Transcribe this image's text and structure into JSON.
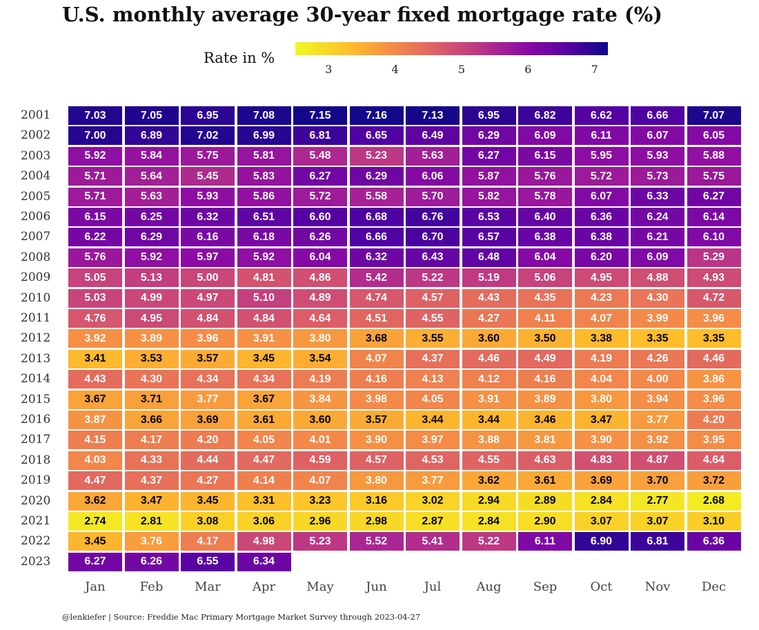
{
  "title": "U.S. monthly average 30-year fixed mortgage rate (%)",
  "legend": {
    "label": "Rate in %",
    "ticks": [
      "3",
      "4",
      "5",
      "6",
      "7"
    ],
    "min": 2.5,
    "max": 7.2
  },
  "footer": "@lenkiefer | Source: Freddie Mac Primary Mortgage Market Survey through 2023-04-27",
  "chart_data": {
    "type": "heatmap",
    "title": "U.S. monthly average 30-year fixed mortgage rate (%)",
    "x": [
      "Jan",
      "Feb",
      "Mar",
      "Apr",
      "May",
      "Jun",
      "Jul",
      "Aug",
      "Sep",
      "Oct",
      "Nov",
      "Dec"
    ],
    "y": [
      "2001",
      "2002",
      "2003",
      "2004",
      "2005",
      "2006",
      "2007",
      "2008",
      "2009",
      "2010",
      "2011",
      "2012",
      "2013",
      "2014",
      "2015",
      "2016",
      "2017",
      "2018",
      "2019",
      "2020",
      "2021",
      "2022",
      "2023"
    ],
    "values": [
      [
        "7.03",
        "7.05",
        "6.95",
        "7.08",
        "7.15",
        "7.16",
        "7.13",
        "6.95",
        "6.82",
        "6.62",
        "6.66",
        "7.07"
      ],
      [
        "7.00",
        "6.89",
        "7.02",
        "6.99",
        "6.81",
        "6.65",
        "6.49",
        "6.29",
        "6.09",
        "6.11",
        "6.07",
        "6.05"
      ],
      [
        "5.92",
        "5.84",
        "5.75",
        "5.81",
        "5.48",
        "5.23",
        "5.63",
        "6.27",
        "6.15",
        "5.95",
        "5.93",
        "5.88"
      ],
      [
        "5.71",
        "5.64",
        "5.45",
        "5.83",
        "6.27",
        "6.29",
        "6.06",
        "5.87",
        "5.76",
        "5.72",
        "5.73",
        "5.75"
      ],
      [
        "5.71",
        "5.63",
        "5.93",
        "5.86",
        "5.72",
        "5.58",
        "5.70",
        "5.82",
        "5.78",
        "6.07",
        "6.33",
        "6.27"
      ],
      [
        "6.15",
        "6.25",
        "6.32",
        "6.51",
        "6.60",
        "6.68",
        "6.76",
        "6.53",
        "6.40",
        "6.36",
        "6.24",
        "6.14"
      ],
      [
        "6.22",
        "6.29",
        "6.16",
        "6.18",
        "6.26",
        "6.66",
        "6.70",
        "6.57",
        "6.38",
        "6.38",
        "6.21",
        "6.10"
      ],
      [
        "5.76",
        "5.92",
        "5.97",
        "5.92",
        "6.04",
        "6.32",
        "6.43",
        "6.48",
        "6.04",
        "6.20",
        "6.09",
        "5.29"
      ],
      [
        "5.05",
        "5.13",
        "5.00",
        "4.81",
        "4.86",
        "5.42",
        "5.22",
        "5.19",
        "5.06",
        "4.95",
        "4.88",
        "4.93"
      ],
      [
        "5.03",
        "4.99",
        "4.97",
        "5.10",
        "4.89",
        "4.74",
        "4.57",
        "4.43",
        "4.35",
        "4.23",
        "4.30",
        "4.72"
      ],
      [
        "4.76",
        "4.95",
        "4.84",
        "4.84",
        "4.64",
        "4.51",
        "4.55",
        "4.27",
        "4.11",
        "4.07",
        "3.99",
        "3.96"
      ],
      [
        "3.92",
        "3.89",
        "3.96",
        "3.91",
        "3.80",
        "3.68",
        "3.55",
        "3.60",
        "3.50",
        "3.38",
        "3.35",
        "3.35"
      ],
      [
        "3.41",
        "3.53",
        "3.57",
        "3.45",
        "3.54",
        "4.07",
        "4.37",
        "4.46",
        "4.49",
        "4.19",
        "4.26",
        "4.46"
      ],
      [
        "4.43",
        "4.30",
        "4.34",
        "4.34",
        "4.19",
        "4.16",
        "4.13",
        "4.12",
        "4.16",
        "4.04",
        "4.00",
        "3.86"
      ],
      [
        "3.67",
        "3.71",
        "3.77",
        "3.67",
        "3.84",
        "3.98",
        "4.05",
        "3.91",
        "3.89",
        "3.80",
        "3.94",
        "3.96"
      ],
      [
        "3.87",
        "3.66",
        "3.69",
        "3.61",
        "3.60",
        "3.57",
        "3.44",
        "3.44",
        "3.46",
        "3.47",
        "3.77",
        "4.20"
      ],
      [
        "4.15",
        "4.17",
        "4.20",
        "4.05",
        "4.01",
        "3.90",
        "3.97",
        "3.88",
        "3.81",
        "3.90",
        "3.92",
        "3.95"
      ],
      [
        "4.03",
        "4.33",
        "4.44",
        "4.47",
        "4.59",
        "4.57",
        "4.53",
        "4.55",
        "4.63",
        "4.83",
        "4.87",
        "4.64"
      ],
      [
        "4.47",
        "4.37",
        "4.27",
        "4.14",
        "4.07",
        "3.80",
        "3.77",
        "3.62",
        "3.61",
        "3.69",
        "3.70",
        "3.72"
      ],
      [
        "3.62",
        "3.47",
        "3.45",
        "3.31",
        "3.23",
        "3.16",
        "3.02",
        "2.94",
        "2.89",
        "2.84",
        "2.77",
        "2.68"
      ],
      [
        "2.74",
        "2.81",
        "3.08",
        "3.06",
        "2.96",
        "2.98",
        "2.87",
        "2.84",
        "2.90",
        "3.07",
        "3.07",
        "3.10"
      ],
      [
        "3.45",
        "3.76",
        "4.17",
        "4.98",
        "5.23",
        "5.52",
        "5.41",
        "5.22",
        "6.11",
        "6.90",
        "6.81",
        "6.36"
      ],
      [
        "6.27",
        "6.26",
        "6.55",
        "6.34",
        null,
        null,
        null,
        null,
        null,
        null,
        null,
        null
      ]
    ],
    "colorbar_label": "Rate in %",
    "colormap": "plasma (reversed: low=yellow, high=dark blue)"
  }
}
